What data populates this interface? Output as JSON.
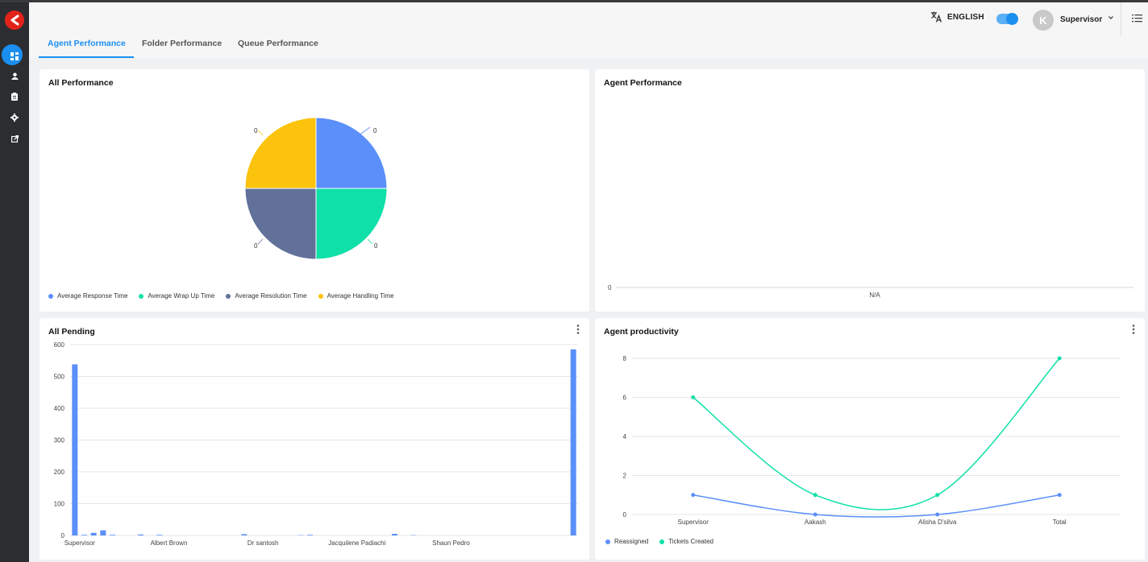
{
  "header": {
    "language_label": "ENGLISH",
    "user_initial": "K",
    "user_name": "Supervisor"
  },
  "sidebar": {
    "items": [
      {
        "icon": "dashboard-icon",
        "active": true
      },
      {
        "icon": "user-icon",
        "active": false
      },
      {
        "icon": "clipboard-icon",
        "active": false
      },
      {
        "icon": "gear-icon",
        "active": false
      },
      {
        "icon": "external-link-icon",
        "active": false
      }
    ]
  },
  "tabs": [
    {
      "label": "Agent Performance",
      "active": true
    },
    {
      "label": "Folder Performance",
      "active": false
    },
    {
      "label": "Queue Performance",
      "active": false
    }
  ],
  "colors": {
    "accent": "#1b8ff0",
    "blue": "#5b8ff9",
    "green": "#0fe0a8",
    "slate": "#61719a",
    "yellow": "#fbc30b"
  },
  "cards": {
    "all_performance": {
      "title": "All Performance"
    },
    "agent_performance": {
      "title": "Agent Performance"
    },
    "all_pending": {
      "title": "All Pending"
    },
    "agent_productivity": {
      "title": "Agent productivity"
    }
  },
  "chart_data": [
    {
      "type": "pie",
      "title": "All Performance",
      "slices": [
        {
          "name": "Average Response Time",
          "value": 0,
          "color": "#5b8ff9"
        },
        {
          "name": "Average Wrap Up Time",
          "value": 0,
          "color": "#0fe0a8"
        },
        {
          "name": "Average Resolution Time",
          "value": 0,
          "color": "#61719a"
        },
        {
          "name": "Average Handling Time",
          "value": 0,
          "color": "#fbc30b"
        }
      ],
      "slice_labels": [
        "0",
        "0",
        "0",
        "0"
      ],
      "legend": "bottom-left"
    },
    {
      "type": "bar",
      "title": "Agent Performance",
      "categories": [
        "N/A"
      ],
      "values": [
        0
      ],
      "yticks": [
        "0"
      ]
    },
    {
      "type": "bar",
      "title": "All Pending",
      "ylim": [
        0,
        600
      ],
      "yticks": [
        "0",
        "100",
        "200",
        "300",
        "400",
        "500",
        "600"
      ],
      "xtick_labels": [
        "Supervisor",
        "Albert Brown",
        "Dr santosh",
        "Jacquilene Padiachi",
        "Shaun Pedro"
      ],
      "values": [
        538,
        2,
        8,
        16,
        2,
        0,
        0,
        3,
        0,
        2,
        0,
        0,
        0,
        0,
        0,
        0,
        0,
        0,
        4,
        0,
        0,
        0,
        0,
        0,
        1,
        2,
        0,
        0,
        0,
        0,
        0,
        0,
        0,
        0,
        5,
        0,
        1,
        0,
        0,
        0,
        0,
        0,
        0,
        0,
        0,
        0,
        0,
        0,
        0,
        0,
        0,
        0,
        0,
        585
      ],
      "color": "#5b8ff9",
      "grid": true
    },
    {
      "type": "line",
      "title": "Agent productivity",
      "categories": [
        "Supervisor",
        "Aakash",
        "Alisha D'silva",
        "Total"
      ],
      "ylim": [
        0,
        8
      ],
      "yticks": [
        "0",
        "2",
        "4",
        "6",
        "8"
      ],
      "series": [
        {
          "name": "Reassigned",
          "values": [
            1,
            0,
            0,
            1
          ],
          "color": "#5b8ff9"
        },
        {
          "name": "Tickets Created",
          "values": [
            6,
            1,
            1,
            8
          ],
          "color": "#0fe0a8"
        }
      ],
      "legend": "bottom-left",
      "grid": true
    }
  ]
}
